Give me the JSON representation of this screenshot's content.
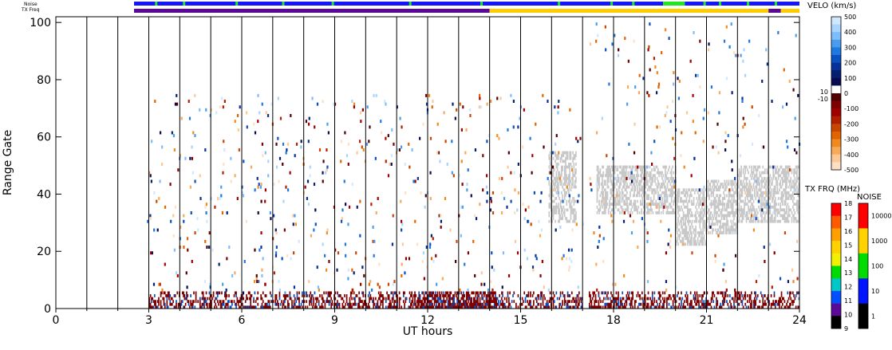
{
  "labels": {
    "noise_row": "Noise",
    "txfreq_row": "TX Freq"
  },
  "chart_data": {
    "type": "heatmap",
    "xlabel": "UT hours",
    "ylabel": "Range Gate",
    "xlim": [
      0,
      24
    ],
    "ylim": [
      0,
      102
    ],
    "x_ticks": [
      "0",
      "3",
      "6",
      "9",
      "12",
      "15",
      "18",
      "21",
      "24"
    ],
    "y_ticks": [
      "0",
      "20",
      "40",
      "60",
      "80",
      "100"
    ],
    "grid": "vertical lines every hour from 1 to 24",
    "data_start_hour": 3,
    "data_gap_hours": [
      17.0,
      17.2
    ],
    "clutter": {
      "description_free": true,
      "ground_scatter_color": "#c8c8c8",
      "bands": [
        {
          "x0": 3.0,
          "x1": 17.0,
          "g0": 0,
          "g1": 5,
          "value": -150
        },
        {
          "x0": 17.2,
          "x1": 24.0,
          "g0": 0,
          "g1": 5,
          "value": -150
        }
      ]
    },
    "ground_scatter_regions": [
      {
        "x0": 15.9,
        "x1": 16.8,
        "g0": 30,
        "g1": 55
      },
      {
        "x0": 17.45,
        "x1": 20.0,
        "g0": 33,
        "g1": 50
      },
      {
        "x0": 20.0,
        "x1": 21.0,
        "g0": 22,
        "g1": 42
      },
      {
        "x0": 21.0,
        "x1": 22.0,
        "g0": 26,
        "g1": 45
      },
      {
        "x0": 22.0,
        "x1": 23.0,
        "g0": 30,
        "g1": 50
      },
      {
        "x0": 23.0,
        "x1": 24.0,
        "g0": 30,
        "g1": 50
      }
    ],
    "top_bars": {
      "noise": {
        "segments": [
          {
            "x0": 0,
            "x1": 2.6,
            "color": "#ffffff"
          },
          {
            "x0": 2.6,
            "x1": 19.6,
            "color": "#1414ff"
          },
          {
            "x0": 19.6,
            "x1": 20.3,
            "color": "#22e622"
          },
          {
            "x0": 20.3,
            "x1": 24,
            "color": "#1414ff"
          }
        ],
        "accents": [
          3.2,
          4.1,
          5.8,
          7.3,
          8.9,
          11.4,
          13.7,
          16.2,
          17.9,
          18.6,
          20.9,
          21.4,
          22.3,
          23.2
        ]
      },
      "txfreq": {
        "segments": [
          {
            "x0": 0,
            "x1": 2.6,
            "color": "#ffffff"
          },
          {
            "x0": 2.6,
            "x1": 14.0,
            "color": "#5a0a96"
          },
          {
            "x0": 14.0,
            "x1": 23.0,
            "color": "#ffcc00"
          },
          {
            "x0": 23.0,
            "x1": 23.4,
            "color": "#5a0a96"
          },
          {
            "x0": 23.4,
            "x1": 24,
            "color": "#ffcc00"
          }
        ]
      }
    },
    "colorbars": {
      "velocity": {
        "title": "VELO (km/s)",
        "ticks": [
          "500",
          "400",
          "300",
          "200",
          "100",
          "0",
          "-100",
          "-200",
          "-300",
          "-400",
          "-500"
        ],
        "side_ticks": [
          "10",
          "-10"
        ],
        "colors": [
          "#d0e8ff",
          "#a8d4ff",
          "#7cbcff",
          "#4a9cf0",
          "#1e78e0",
          "#0a50c0",
          "#06309a",
          "#051f70",
          "#0a0a50",
          "#ffffff",
          "#500000",
          "#800000",
          "#a00000",
          "#b41e00",
          "#c84600",
          "#e06400",
          "#f08a1e",
          "#f8aa5a",
          "#fcc896",
          "#fde0c4"
        ]
      },
      "txfreq": {
        "title": "TX FRQ (MHz)",
        "ticks": [
          "18",
          "17",
          "16",
          "15",
          "14",
          "13",
          "12",
          "11",
          "10",
          "9"
        ],
        "colors": [
          "#ff0000",
          "#ff5a00",
          "#ffa000",
          "#ffd200",
          "#f0f000",
          "#00dc00",
          "#00c8c8",
          "#0050ff",
          "#5a0a96",
          "#000000"
        ]
      },
      "noise": {
        "title": "NOISE",
        "ticks": [
          "10000",
          "1000",
          "100",
          "10",
          "1"
        ],
        "colors": [
          "#ff0000",
          "#ffd200",
          "#00dc00",
          "#0014ff",
          "#000000"
        ]
      }
    },
    "colors": {
      "velocity_positive": "#0a50c0",
      "velocity_negative": "#800000",
      "ground": "#c8c8c8"
    }
  }
}
